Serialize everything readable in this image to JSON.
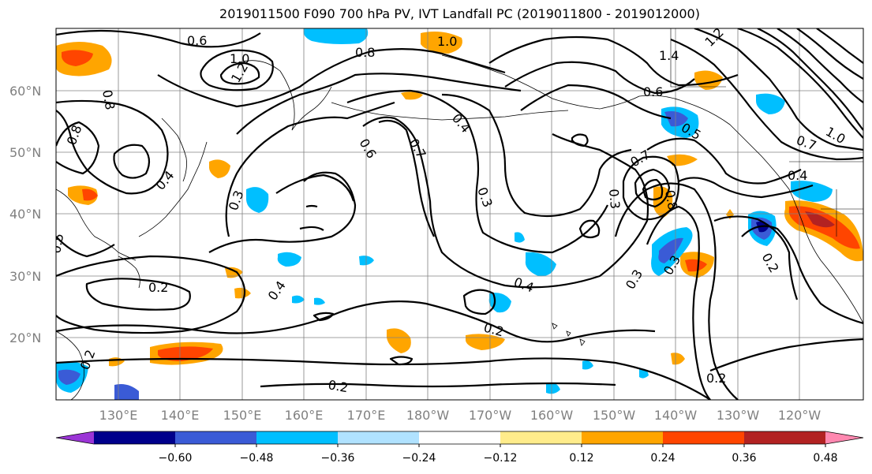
{
  "title": "2019011500 F090 700 hPa PV, IVT Landfall PC (2019011800 - 2019012000)",
  "lat_labels": [
    "60°N",
    "50°N",
    "40°N",
    "30°N",
    "20°N"
  ],
  "lon_labels": [
    "130°E",
    "140°E",
    "150°E",
    "160°E",
    "170°E",
    "180°W",
    "170°W",
    "160°W",
    "150°W",
    "140°W",
    "130°W",
    "120°W"
  ],
  "colorbar": {
    "tick_labels": [
      "−0.60",
      "−0.48",
      "−0.36",
      "−0.24",
      "−0.12",
      "0.12",
      "0.24",
      "0.36",
      "0.48",
      "0.60"
    ],
    "colors": [
      "#9b35d6",
      "#00008b",
      "#3a5bd6",
      "#00bfff",
      "#b0e2ff",
      "#ffffff",
      "#ffec8b",
      "#ffa500",
      "#ff4500",
      "#b22222",
      "#ff88b0"
    ]
  },
  "contour_labels": [
    {
      "text": "0.6"
    },
    {
      "text": "1.0"
    },
    {
      "text": "1.2"
    },
    {
      "text": "0.8"
    },
    {
      "text": "0.8"
    },
    {
      "text": "1.0"
    },
    {
      "text": "1.4"
    },
    {
      "text": "1.2"
    },
    {
      "text": "0.6"
    },
    {
      "text": "0.5"
    },
    {
      "text": "0.6"
    },
    {
      "text": "0.7"
    },
    {
      "text": "0.4"
    },
    {
      "text": "0.3"
    },
    {
      "text": "0.3"
    },
    {
      "text": "0.7"
    },
    {
      "text": "0.8"
    },
    {
      "text": "0.3"
    },
    {
      "text": "0.4"
    },
    {
      "text": "0.2"
    },
    {
      "text": "0.4"
    },
    {
      "text": "0.2"
    },
    {
      "text": "0.2"
    },
    {
      "text": "0.2"
    },
    {
      "text": "0.3"
    },
    {
      "text": "0.3"
    },
    {
      "text": "0.2"
    },
    {
      "text": "0.4"
    },
    {
      "text": "0.7"
    },
    {
      "text": "1.0"
    },
    {
      "text": "0.5"
    },
    {
      "text": "0.8"
    },
    {
      "text": "0.4"
    },
    {
      "text": "0.2"
    }
  ]
}
